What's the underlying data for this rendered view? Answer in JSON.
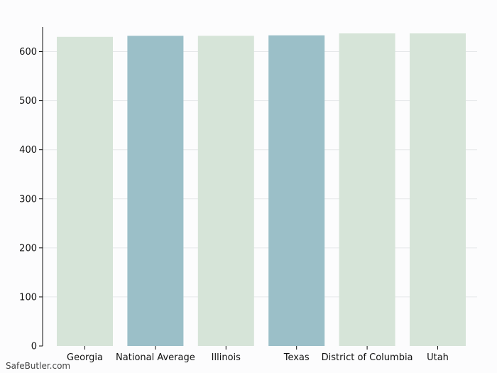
{
  "chart_data": {
    "type": "bar",
    "categories": [
      "Georgia",
      "National Average",
      "Illinois",
      "Texas",
      "District of Columbia",
      "Utah"
    ],
    "values": [
      630,
      632,
      632,
      633,
      637,
      637
    ],
    "bar_colors": [
      "#d6e4d8",
      "#9bbfc8",
      "#d6e4d8",
      "#9bbfc8",
      "#d6e4d8",
      "#d6e4d8"
    ],
    "ylim": [
      0,
      650
    ],
    "yticks": [
      0,
      100,
      200,
      300,
      400,
      500,
      600
    ],
    "grid": true,
    "title": "",
    "xlabel": "",
    "ylabel": ""
  },
  "watermark": "SafeButler.com"
}
